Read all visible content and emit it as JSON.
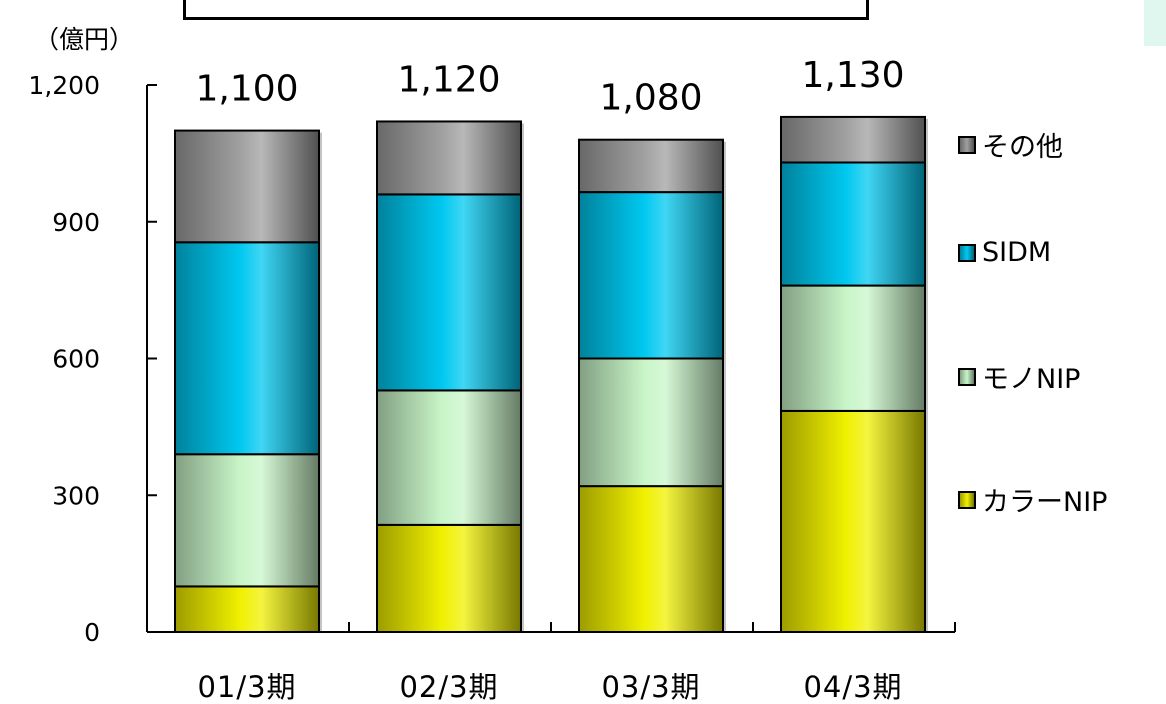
{
  "chart_data": {
    "type": "bar",
    "stacked": true,
    "categories": [
      "01/3期",
      "02/3期",
      "03/3期",
      "04/3期"
    ],
    "series": [
      {
        "name": "カラーNIP",
        "values": [
          100,
          235,
          320,
          485
        ],
        "color": "#f0f000"
      },
      {
        "name": "モノNIP",
        "values": [
          290,
          295,
          280,
          275
        ],
        "color": "#c8f5c8"
      },
      {
        "name": "SIDM",
        "values": [
          465,
          430,
          365,
          270
        ],
        "color": "#00c8f0"
      },
      {
        "name": "その他",
        "values": [
          245,
          160,
          115,
          100
        ],
        "color": "#a0a0a0"
      }
    ],
    "totals": [
      "1,100",
      "1,120",
      "1,080",
      "1,130"
    ],
    "ylabel": "（億円）",
    "ylim": [
      0,
      1200
    ],
    "yticks": [
      0,
      300,
      600,
      900,
      1200
    ],
    "ytick_labels": [
      "0",
      "300",
      "600",
      "900",
      "1,200"
    ],
    "legend_position": "right",
    "grid": false
  }
}
